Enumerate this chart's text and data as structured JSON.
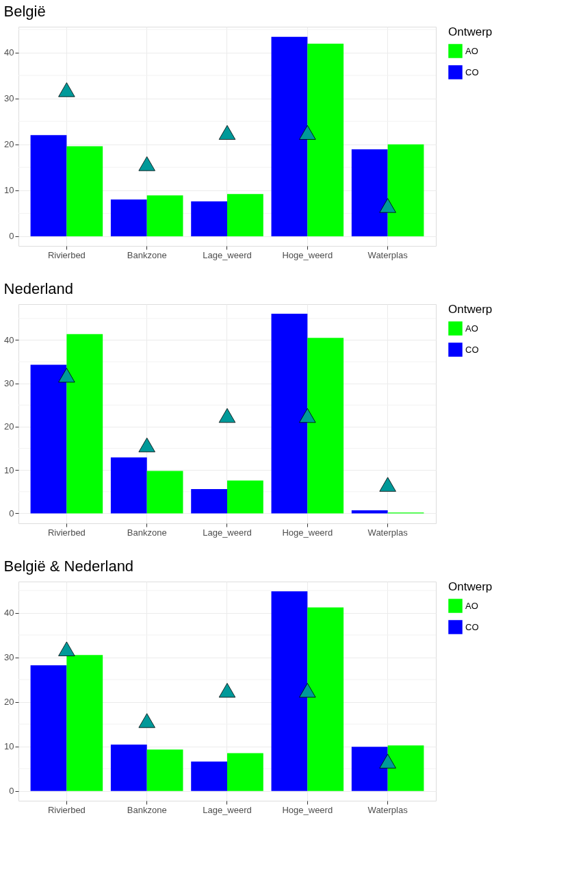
{
  "chart_data": [
    {
      "type": "bar",
      "title": "België",
      "categories": [
        "Rivierbed",
        "Bankzone",
        "Lage_weerd",
        "Hoge_weerd",
        "Waterplas"
      ],
      "legend_title": "Ontwerp",
      "legend": "right",
      "grid": true,
      "ylim": [
        -2.1,
        45.6
      ],
      "yticks": [
        0,
        {
          "value": 5,
          "label": null
        },
        10,
        {
          "value": 15,
          "label": null
        },
        20,
        {
          "value": 25,
          "label": null
        },
        30,
        {
          "value": 35,
          "label": null
        },
        40,
        {
          "value": 45,
          "label": null
        }
      ],
      "series": [
        {
          "name": "CO",
          "color": "#0000ff",
          "values": [
            22.0,
            8.0,
            7.6,
            43.4,
            18.9
          ]
        },
        {
          "name": "AO",
          "color": "#00ff00",
          "values": [
            19.6,
            8.9,
            9.2,
            41.9,
            20.0
          ]
        },
        {
          "type": "scatter",
          "marker": "triangle",
          "color": "#009999",
          "values": [
            31.9,
            15.8,
            22.6,
            22.6,
            6.7
          ]
        }
      ]
    },
    {
      "type": "bar",
      "title": "Nederland",
      "categories": [
        "Rivierbed",
        "Bankzone",
        "Lage_weerd",
        "Hoge_weerd",
        "Waterplas"
      ],
      "legend_title": "Ontwerp",
      "legend": "right",
      "grid": true,
      "ylim": [
        -2.3,
        48.3
      ],
      "yticks": [
        0,
        {
          "value": 5,
          "label": null
        },
        10,
        {
          "value": 15,
          "label": null
        },
        20,
        {
          "value": 25,
          "label": null
        },
        30,
        {
          "value": 35,
          "label": null
        },
        40,
        {
          "value": 45,
          "label": null
        }
      ],
      "series": [
        {
          "name": "CO",
          "color": "#0000ff",
          "values": [
            34.3,
            12.9,
            5.6,
            46.1,
            0.7
          ]
        },
        {
          "name": "AO",
          "color": "#00ff00",
          "values": [
            41.4,
            9.8,
            7.6,
            40.5,
            0.2
          ]
        },
        {
          "type": "scatter",
          "marker": "triangle",
          "color": "#009999",
          "values": [
            31.9,
            15.8,
            22.6,
            22.6,
            6.7
          ]
        }
      ]
    },
    {
      "type": "bar",
      "title": "België & Nederland",
      "categories": [
        "Rivierbed",
        "Bankzone",
        "Lage_weerd",
        "Hoge_weerd",
        "Waterplas"
      ],
      "legend_title": "Ontwerp",
      "legend": "right",
      "grid": true,
      "ylim": [
        -2.2,
        47.0
      ],
      "yticks": [
        0,
        {
          "value": 5,
          "label": null
        },
        10,
        {
          "value": 15,
          "label": null
        },
        20,
        {
          "value": 25,
          "label": null
        },
        30,
        {
          "value": 35,
          "label": null
        },
        40,
        {
          "value": 45,
          "label": null
        }
      ],
      "series": [
        {
          "name": "CO",
          "color": "#0000ff",
          "values": [
            28.2,
            10.4,
            6.6,
            44.8,
            9.9
          ]
        },
        {
          "name": "AO",
          "color": "#00ff00",
          "values": [
            30.5,
            9.3,
            8.5,
            41.2,
            10.2
          ]
        },
        {
          "type": "scatter",
          "marker": "triangle",
          "color": "#009999",
          "values": [
            31.9,
            15.8,
            22.6,
            22.6,
            6.7
          ]
        }
      ]
    }
  ]
}
